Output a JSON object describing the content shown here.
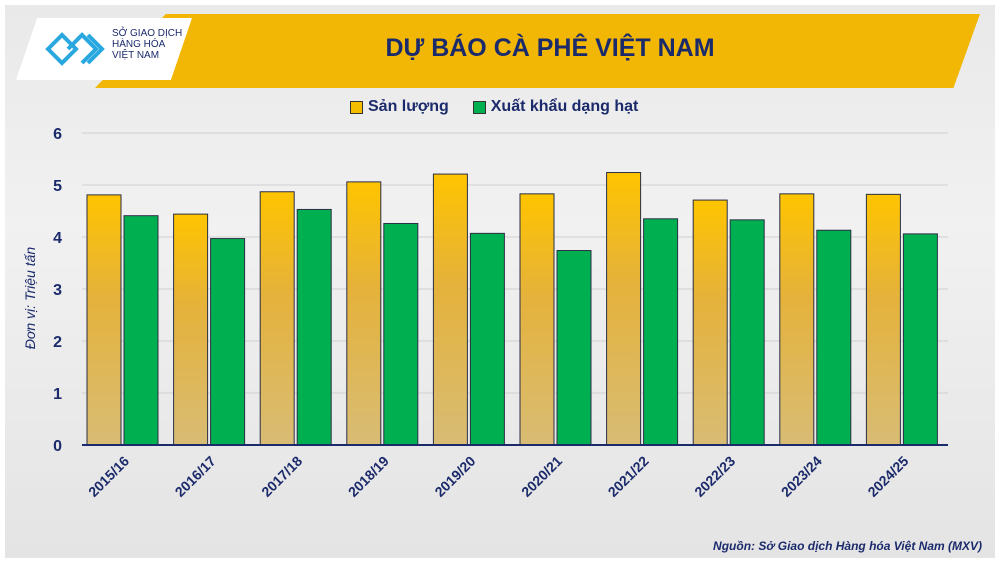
{
  "header": {
    "title": "DỰ BÁO CÀ PHÊ VIỆT NAM",
    "logo_text": [
      "SỞ GIAO DỊCH",
      "HÀNG HÓA",
      "VIỆT NAM"
    ]
  },
  "source": "Nguồn: Sở Giao dịch Hàng hóa Việt Nam (MXV)",
  "chart_data": {
    "type": "bar",
    "title": "DỰ BÁO CÀ PHÊ VIỆT NAM",
    "ylabel": "Đơn vị: Triệu tấn",
    "xlabel": "",
    "ylim": [
      0,
      6
    ],
    "yticks": [
      0,
      1,
      2,
      3,
      4,
      5,
      6
    ],
    "grid": true,
    "legend": "top-center",
    "categories": [
      "2015/16",
      "2016/17",
      "2017/18",
      "2018/19",
      "2019/20",
      "2020/21",
      "2021/22",
      "2022/23",
      "2023/24",
      "2024/25"
    ],
    "series": [
      {
        "name": "Sản lượng",
        "color": "#f5bd00",
        "values": [
          4.81,
          4.44,
          4.87,
          5.06,
          5.21,
          4.83,
          5.24,
          4.71,
          4.83,
          4.82
        ]
      },
      {
        "name": "Xuất khẩu dạng hạt",
        "color": "#00b050",
        "values": [
          4.41,
          3.97,
          4.53,
          4.26,
          4.07,
          3.74,
          4.35,
          4.33,
          4.13,
          4.06
        ]
      }
    ]
  }
}
